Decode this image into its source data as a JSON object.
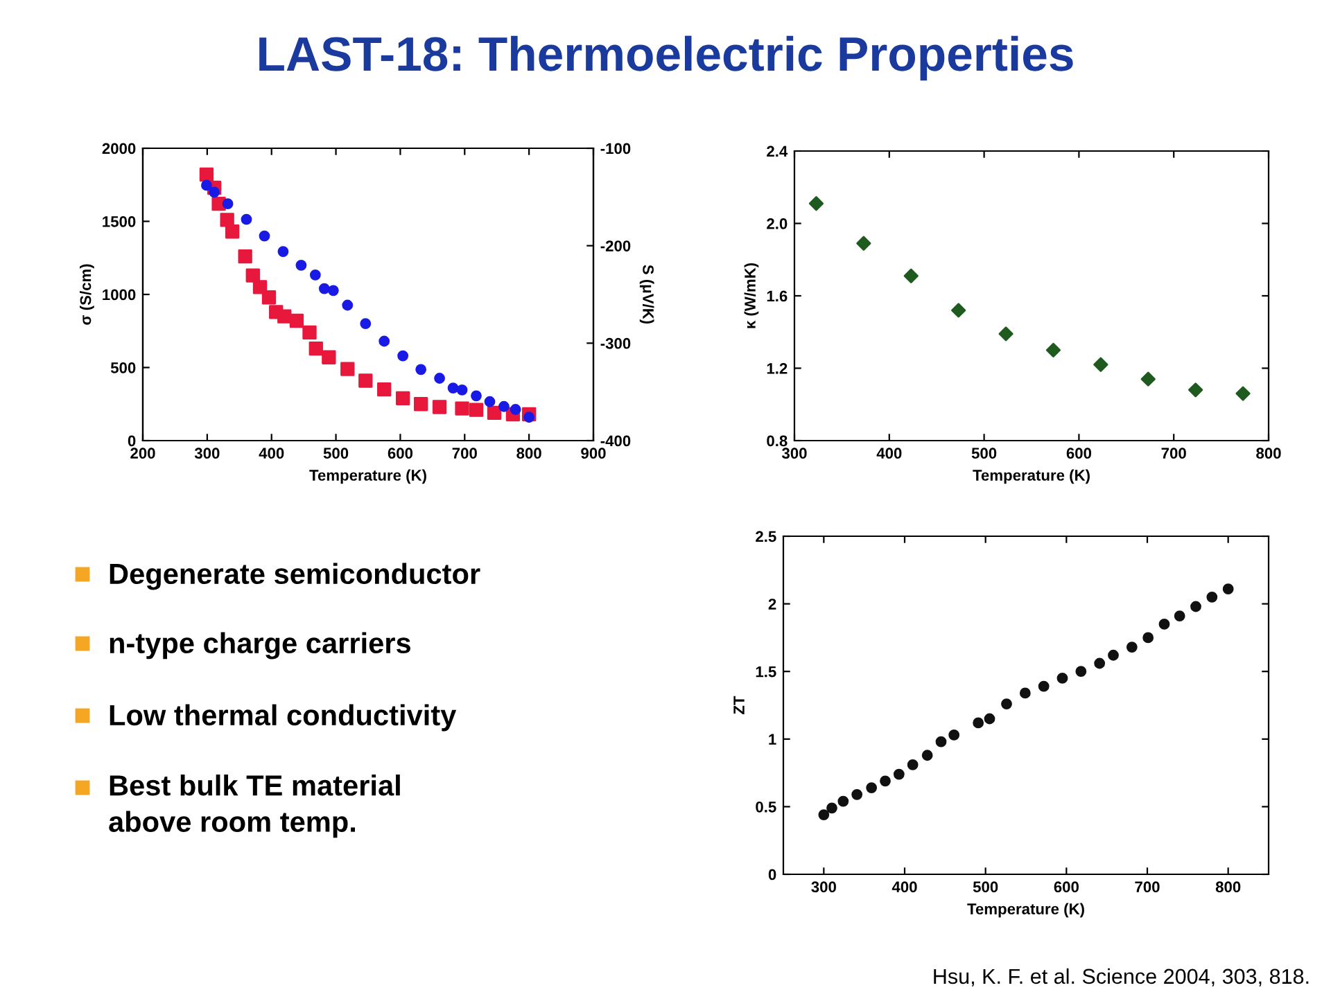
{
  "chart_data": [
    {
      "type": "scatter",
      "xlabel": "Temperature (K)",
      "ylabel": "σ (S/cm)",
      "y2label": "S (μV/K)",
      "xlim": [
        200,
        900
      ],
      "xticks": [
        200,
        300,
        400,
        500,
        600,
        700,
        800,
        900
      ],
      "ylim": [
        0,
        2000
      ],
      "yticks": [
        0,
        500,
        1000,
        1500,
        2000
      ],
      "y2lim": [
        -400,
        -100
      ],
      "y2ticks": [
        -400,
        -300,
        -200,
        -100
      ],
      "grid": false,
      "series": [
        {
          "color": "#e8173c",
          "marker": "square",
          "x": [
            299,
            311,
            318,
            331,
            339,
            359,
            371,
            382,
            396,
            407,
            420,
            439,
            459,
            469,
            489,
            518,
            546,
            575,
            604,
            632,
            661,
            696,
            718,
            746,
            775,
            800
          ],
          "values": [
            1820,
            1730,
            1620,
            1510,
            1430,
            1260,
            1130,
            1050,
            980,
            880,
            850,
            820,
            740,
            630,
            570,
            490,
            410,
            350,
            290,
            250,
            230,
            220,
            210,
            190,
            180,
            180
          ]
        },
        {
          "color": "#1a1ae6",
          "marker": "circle",
          "axis": "y2",
          "x": [
            299,
            311,
            332,
            361,
            389,
            418,
            446,
            468,
            482,
            496,
            518,
            546,
            575,
            604,
            632,
            661,
            682,
            696,
            718,
            739,
            761,
            779,
            800
          ],
          "values": [
            -138,
            -145,
            -157,
            -173,
            -190,
            -206,
            -220,
            -230,
            -244,
            -246,
            -261,
            -280,
            -298,
            -313,
            -327,
            -336,
            -346,
            -348,
            -354,
            -360,
            -365,
            -368,
            -376
          ]
        }
      ]
    },
    {
      "type": "scatter",
      "xlabel": "Temperature (K)",
      "ylabel": "κ (W/mK)",
      "xlim": [
        300,
        800
      ],
      "xticks": [
        300,
        400,
        500,
        600,
        700,
        800
      ],
      "ylim": [
        0.8,
        2.4
      ],
      "yticks": [
        {
          "value": 0.8,
          "label": "0.8"
        },
        {
          "value": 1.2,
          "label": "1.2"
        },
        {
          "value": 1.6,
          "label": "1.6"
        },
        {
          "value": 2.0,
          "label": "2.0"
        },
        {
          "value": 2.4,
          "label": "2.4"
        }
      ],
      "grid": false,
      "series": [
        {
          "color": "#1f5a1f",
          "marker": "diamond",
          "x": [
            323,
            373,
            423,
            473,
            523,
            573,
            623,
            673,
            723,
            773
          ],
          "values": [
            2.11,
            1.89,
            1.71,
            1.52,
            1.39,
            1.3,
            1.22,
            1.14,
            1.08,
            1.06
          ]
        }
      ]
    },
    {
      "type": "scatter",
      "xlabel": "Temperature (K)",
      "ylabel": "ZT",
      "xlim": [
        250,
        850
      ],
      "xticks": [
        300,
        400,
        500,
        600,
        700,
        800
      ],
      "ylim": [
        0,
        2.5
      ],
      "yticks": [
        0,
        0.5,
        1,
        1.5,
        2,
        2.5
      ],
      "grid": false,
      "series": [
        {
          "color": "#111111",
          "marker": "circle",
          "x": [
            300,
            310,
            324,
            341,
            359,
            376,
            393,
            410,
            428,
            445,
            461,
            491,
            505,
            526,
            549,
            572,
            595,
            618,
            641,
            658,
            681,
            701,
            721,
            740,
            760,
            780,
            800
          ],
          "values": [
            0.44,
            0.49,
            0.54,
            0.59,
            0.64,
            0.69,
            0.74,
            0.81,
            0.88,
            0.98,
            1.03,
            1.12,
            1.15,
            1.26,
            1.34,
            1.39,
            1.45,
            1.5,
            1.56,
            1.62,
            1.68,
            1.75,
            1.85,
            1.91,
            1.98,
            2.05,
            2.11
          ]
        }
      ]
    },
    {
      "type": "other",
      "title": "LAST-18: Thermoelectric Properties",
      "annotations": [
        "Degenerate semiconductor",
        "n-type charge carriers",
        "Low thermal conductivity",
        "Best bulk TE material\nabove room temp.",
        "Hsu, K. F. et al. Science 2004, 303, 818."
      ]
    }
  ]
}
